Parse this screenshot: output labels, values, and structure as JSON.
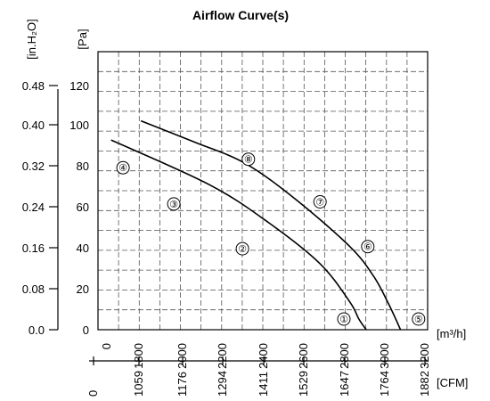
{
  "chart_data": {
    "type": "line",
    "title": "Airflow Curve(s)",
    "x_unit_primary": "[m³/h]",
    "x_unit_secondary": "[CFM]",
    "y_unit_primary": "[Pa]",
    "y_unit_secondary": "[in.H₂O]",
    "x_ticks_primary": [
      "0",
      "1800",
      "2000",
      "2200",
      "2400",
      "2600",
      "2800",
      "3000",
      "3200"
    ],
    "x_ticks_secondary": [
      "0",
      "1059",
      "1176",
      "1294",
      "1411",
      "1529",
      "1647",
      "1764",
      "1882"
    ],
    "y_ticks_primary": [
      "0",
      "20",
      "40",
      "60",
      "80",
      "100",
      "120"
    ],
    "y_ticks_secondary": [
      "0.0",
      "0.08",
      "0.16",
      "0.24",
      "0.32",
      "0.40",
      "0.48"
    ],
    "ylim": [
      0,
      120
    ],
    "grid": true,
    "series": [
      {
        "values": [
          [
            0.02,
            89
          ],
          [
            0.35,
            68
          ],
          [
            0.55,
            50
          ],
          [
            0.72,
            31
          ],
          [
            0.82,
            13
          ],
          [
            0.85,
            5
          ],
          [
            0.875,
            0
          ]
        ]
      },
      {
        "values": [
          [
            0.12,
            98
          ],
          [
            0.3,
            88
          ],
          [
            0.47,
            78
          ],
          [
            0.64,
            61
          ],
          [
            0.82,
            39
          ],
          [
            0.9,
            25
          ],
          [
            0.95,
            12
          ],
          [
            0.99,
            0
          ]
        ]
      }
    ],
    "markers": [
      {
        "label": "①",
        "x": 0.8,
        "y": 5
      },
      {
        "label": "②",
        "x": 0.46,
        "y": 38
      },
      {
        "label": "③",
        "x": 0.23,
        "y": 59
      },
      {
        "label": "④",
        "x": 0.06,
        "y": 76
      },
      {
        "label": "⑤",
        "x": 1.05,
        "y": 5
      },
      {
        "label": "⑥",
        "x": 0.88,
        "y": 39
      },
      {
        "label": "⑦",
        "x": 0.72,
        "y": 60
      },
      {
        "label": "⑧",
        "x": 0.48,
        "y": 80
      }
    ]
  }
}
